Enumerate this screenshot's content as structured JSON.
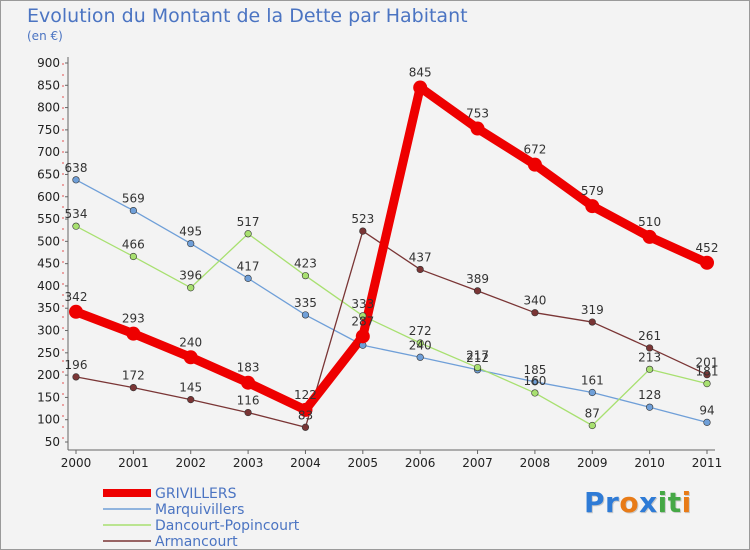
{
  "title": "Evolution du Montant de la Dette par Habitant",
  "subtitle": "(en €)",
  "logo": {
    "text": "Proxiti",
    "letters": [
      "P",
      "r",
      "o",
      "x",
      "i",
      "t",
      "i"
    ],
    "colors": [
      "#2e7bd6",
      "#2e7bd6",
      "#e87b17",
      "#2e7bd6",
      "#45a845",
      "#45a845",
      "#e87b17"
    ]
  },
  "chart_data": {
    "type": "line",
    "title": "Evolution du Montant de la Dette par Habitant",
    "subtitle": "(en €)",
    "x": [
      "2000",
      "2001",
      "2002",
      "2003",
      "2004",
      "2005",
      "2006",
      "2007",
      "2008",
      "2009",
      "2010",
      "2011"
    ],
    "ylim": [
      50,
      900
    ],
    "yticks": [
      50,
      100,
      150,
      200,
      250,
      300,
      350,
      400,
      450,
      500,
      550,
      600,
      650,
      700,
      750,
      800,
      850,
      900
    ],
    "grid": false,
    "legend_position": "bottom-left",
    "series": [
      {
        "name": "GRIVILLERS",
        "color": "#ee0000",
        "bold": true,
        "values": [
          342,
          293,
          240,
          183,
          122,
          287,
          845,
          753,
          672,
          579,
          510,
          452
        ],
        "labels": [
          "342",
          "293",
          "240",
          "183",
          "122",
          "287",
          "845",
          "753",
          "672",
          "579",
          "510",
          "452"
        ]
      },
      {
        "name": "Marquivillers",
        "color": "#6f9fd8",
        "bold": false,
        "values": [
          638,
          569,
          495,
          417,
          335,
          267,
          240,
          212,
          185,
          161,
          128,
          94
        ],
        "labels": [
          "638",
          "569",
          "495",
          "417",
          "335",
          "",
          "240",
          "212",
          "185",
          "161",
          "128",
          "94"
        ]
      },
      {
        "name": "Dancourt-Popincourt",
        "color": "#a8e070",
        "bold": false,
        "values": [
          534,
          466,
          396,
          517,
          423,
          333,
          272,
          217,
          160,
          87,
          213,
          181
        ],
        "labels": [
          "534",
          "466",
          "396",
          "517",
          "423",
          "333",
          "272",
          "217",
          "160",
          "87",
          "213",
          "181"
        ]
      },
      {
        "name": "Armancourt",
        "color": "#7a3535",
        "bold": false,
        "values": [
          196,
          172,
          145,
          116,
          83,
          523,
          437,
          389,
          340,
          319,
          261,
          201
        ],
        "labels": [
          "196",
          "172",
          "145",
          "116",
          "83",
          "523",
          "437",
          "389",
          "340",
          "319",
          "261",
          "201"
        ]
      }
    ]
  }
}
